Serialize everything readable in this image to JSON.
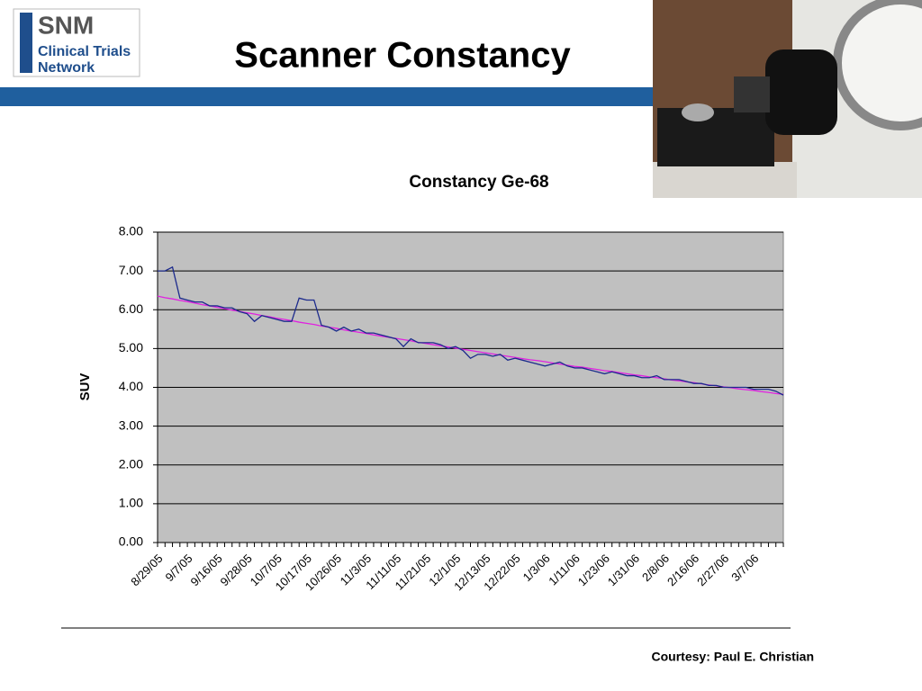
{
  "header": {
    "logo": [
      "SNM",
      "Clinical Trials",
      "Network"
    ],
    "title": "Scanner Constancy"
  },
  "chart_data": {
    "type": "line",
    "title": "Constancy Ge-68",
    "y_label": "SUV",
    "categories": [
      "8/29/05",
      null,
      null,
      null,
      "9/7/05",
      null,
      null,
      null,
      "9/16/05",
      null,
      null,
      null,
      "9/28/05",
      null,
      null,
      null,
      "10/7/05",
      null,
      null,
      null,
      "10/17/05",
      null,
      null,
      null,
      "10/26/05",
      null,
      null,
      null,
      "11/3/05",
      null,
      null,
      null,
      "11/11/05",
      null,
      null,
      null,
      "11/21/05",
      null,
      null,
      null,
      "12/1/05",
      null,
      null,
      null,
      "12/13/05",
      null,
      null,
      null,
      "12/22/05",
      null,
      null,
      null,
      "1/3/06",
      null,
      null,
      null,
      "1/11/06",
      null,
      null,
      null,
      "1/23/06",
      null,
      null,
      null,
      "1/31/06",
      null,
      null,
      null,
      "2/8/06",
      null,
      null,
      null,
      "2/16/06",
      null,
      null,
      null,
      "2/27/06",
      null,
      null,
      null,
      "3/7/06",
      null,
      null,
      null,
      null
    ],
    "series": [
      {
        "color": "#1c2a8c",
        "values": [
          7.0,
          7.0,
          7.1,
          6.3,
          6.25,
          6.2,
          6.2,
          6.1,
          6.1,
          6.05,
          6.05,
          5.95,
          5.9,
          5.7,
          5.85,
          5.8,
          5.75,
          5.7,
          5.7,
          6.3,
          6.25,
          6.25,
          5.6,
          5.55,
          5.45,
          5.55,
          5.45,
          5.5,
          5.4,
          5.4,
          5.35,
          5.3,
          5.25,
          5.05,
          5.25,
          5.15,
          5.15,
          5.15,
          5.1,
          5.0,
          5.05,
          4.95,
          4.75,
          4.85,
          4.85,
          4.8,
          4.85,
          4.7,
          4.75,
          4.7,
          4.65,
          4.6,
          4.55,
          4.6,
          4.65,
          4.55,
          4.5,
          4.5,
          4.45,
          4.4,
          4.35,
          4.4,
          4.35,
          4.3,
          4.3,
          4.25,
          4.25,
          4.3,
          4.2,
          4.2,
          4.2,
          4.15,
          4.1,
          4.1,
          4.05,
          4.05,
          4.0,
          4.0,
          4.0,
          4.0,
          3.95,
          3.95,
          3.95,
          3.9,
          3.8
        ]
      },
      {
        "color": "#e021e0",
        "values": [
          6.35,
          6.31,
          6.28,
          6.24,
          6.21,
          6.17,
          6.13,
          6.1,
          6.06,
          6.03,
          5.99,
          5.96,
          5.92,
          5.89,
          5.85,
          5.82,
          5.78,
          5.75,
          5.72,
          5.68,
          5.65,
          5.62,
          5.58,
          5.55,
          5.52,
          5.48,
          5.45,
          5.42,
          5.39,
          5.35,
          5.32,
          5.29,
          5.26,
          5.23,
          5.2,
          5.16,
          5.13,
          5.1,
          5.07,
          5.04,
          5.01,
          4.98,
          4.95,
          4.92,
          4.89,
          4.86,
          4.83,
          4.8,
          4.77,
          4.74,
          4.71,
          4.69,
          4.66,
          4.63,
          4.6,
          4.57,
          4.54,
          4.52,
          4.49,
          4.46,
          4.43,
          4.41,
          4.38,
          4.35,
          4.32,
          4.3,
          4.27,
          4.25,
          4.22,
          4.19,
          4.17,
          4.14,
          4.12,
          4.09,
          4.06,
          4.04,
          4.01,
          3.99,
          3.96,
          3.94,
          3.92,
          3.89,
          3.87,
          3.84,
          3.82
        ]
      }
    ],
    "ylim": [
      0,
      8
    ],
    "yticks": [
      {
        "value": 0,
        "label": "0.00"
      },
      {
        "value": 1,
        "label": "1.00"
      },
      {
        "value": 2,
        "label": "2.00"
      },
      {
        "value": 3,
        "label": "3.00"
      },
      {
        "value": 4,
        "label": "4.00"
      },
      {
        "value": 5,
        "label": "5.00"
      },
      {
        "value": 6,
        "label": "6.00"
      },
      {
        "value": 7,
        "label": "7.00"
      },
      {
        "value": 8,
        "label": "8.00"
      }
    ],
    "grid": true,
    "plot_background": "#c0c0c0"
  },
  "footer": {
    "credit": "Courtesy: Paul E. Christian"
  }
}
